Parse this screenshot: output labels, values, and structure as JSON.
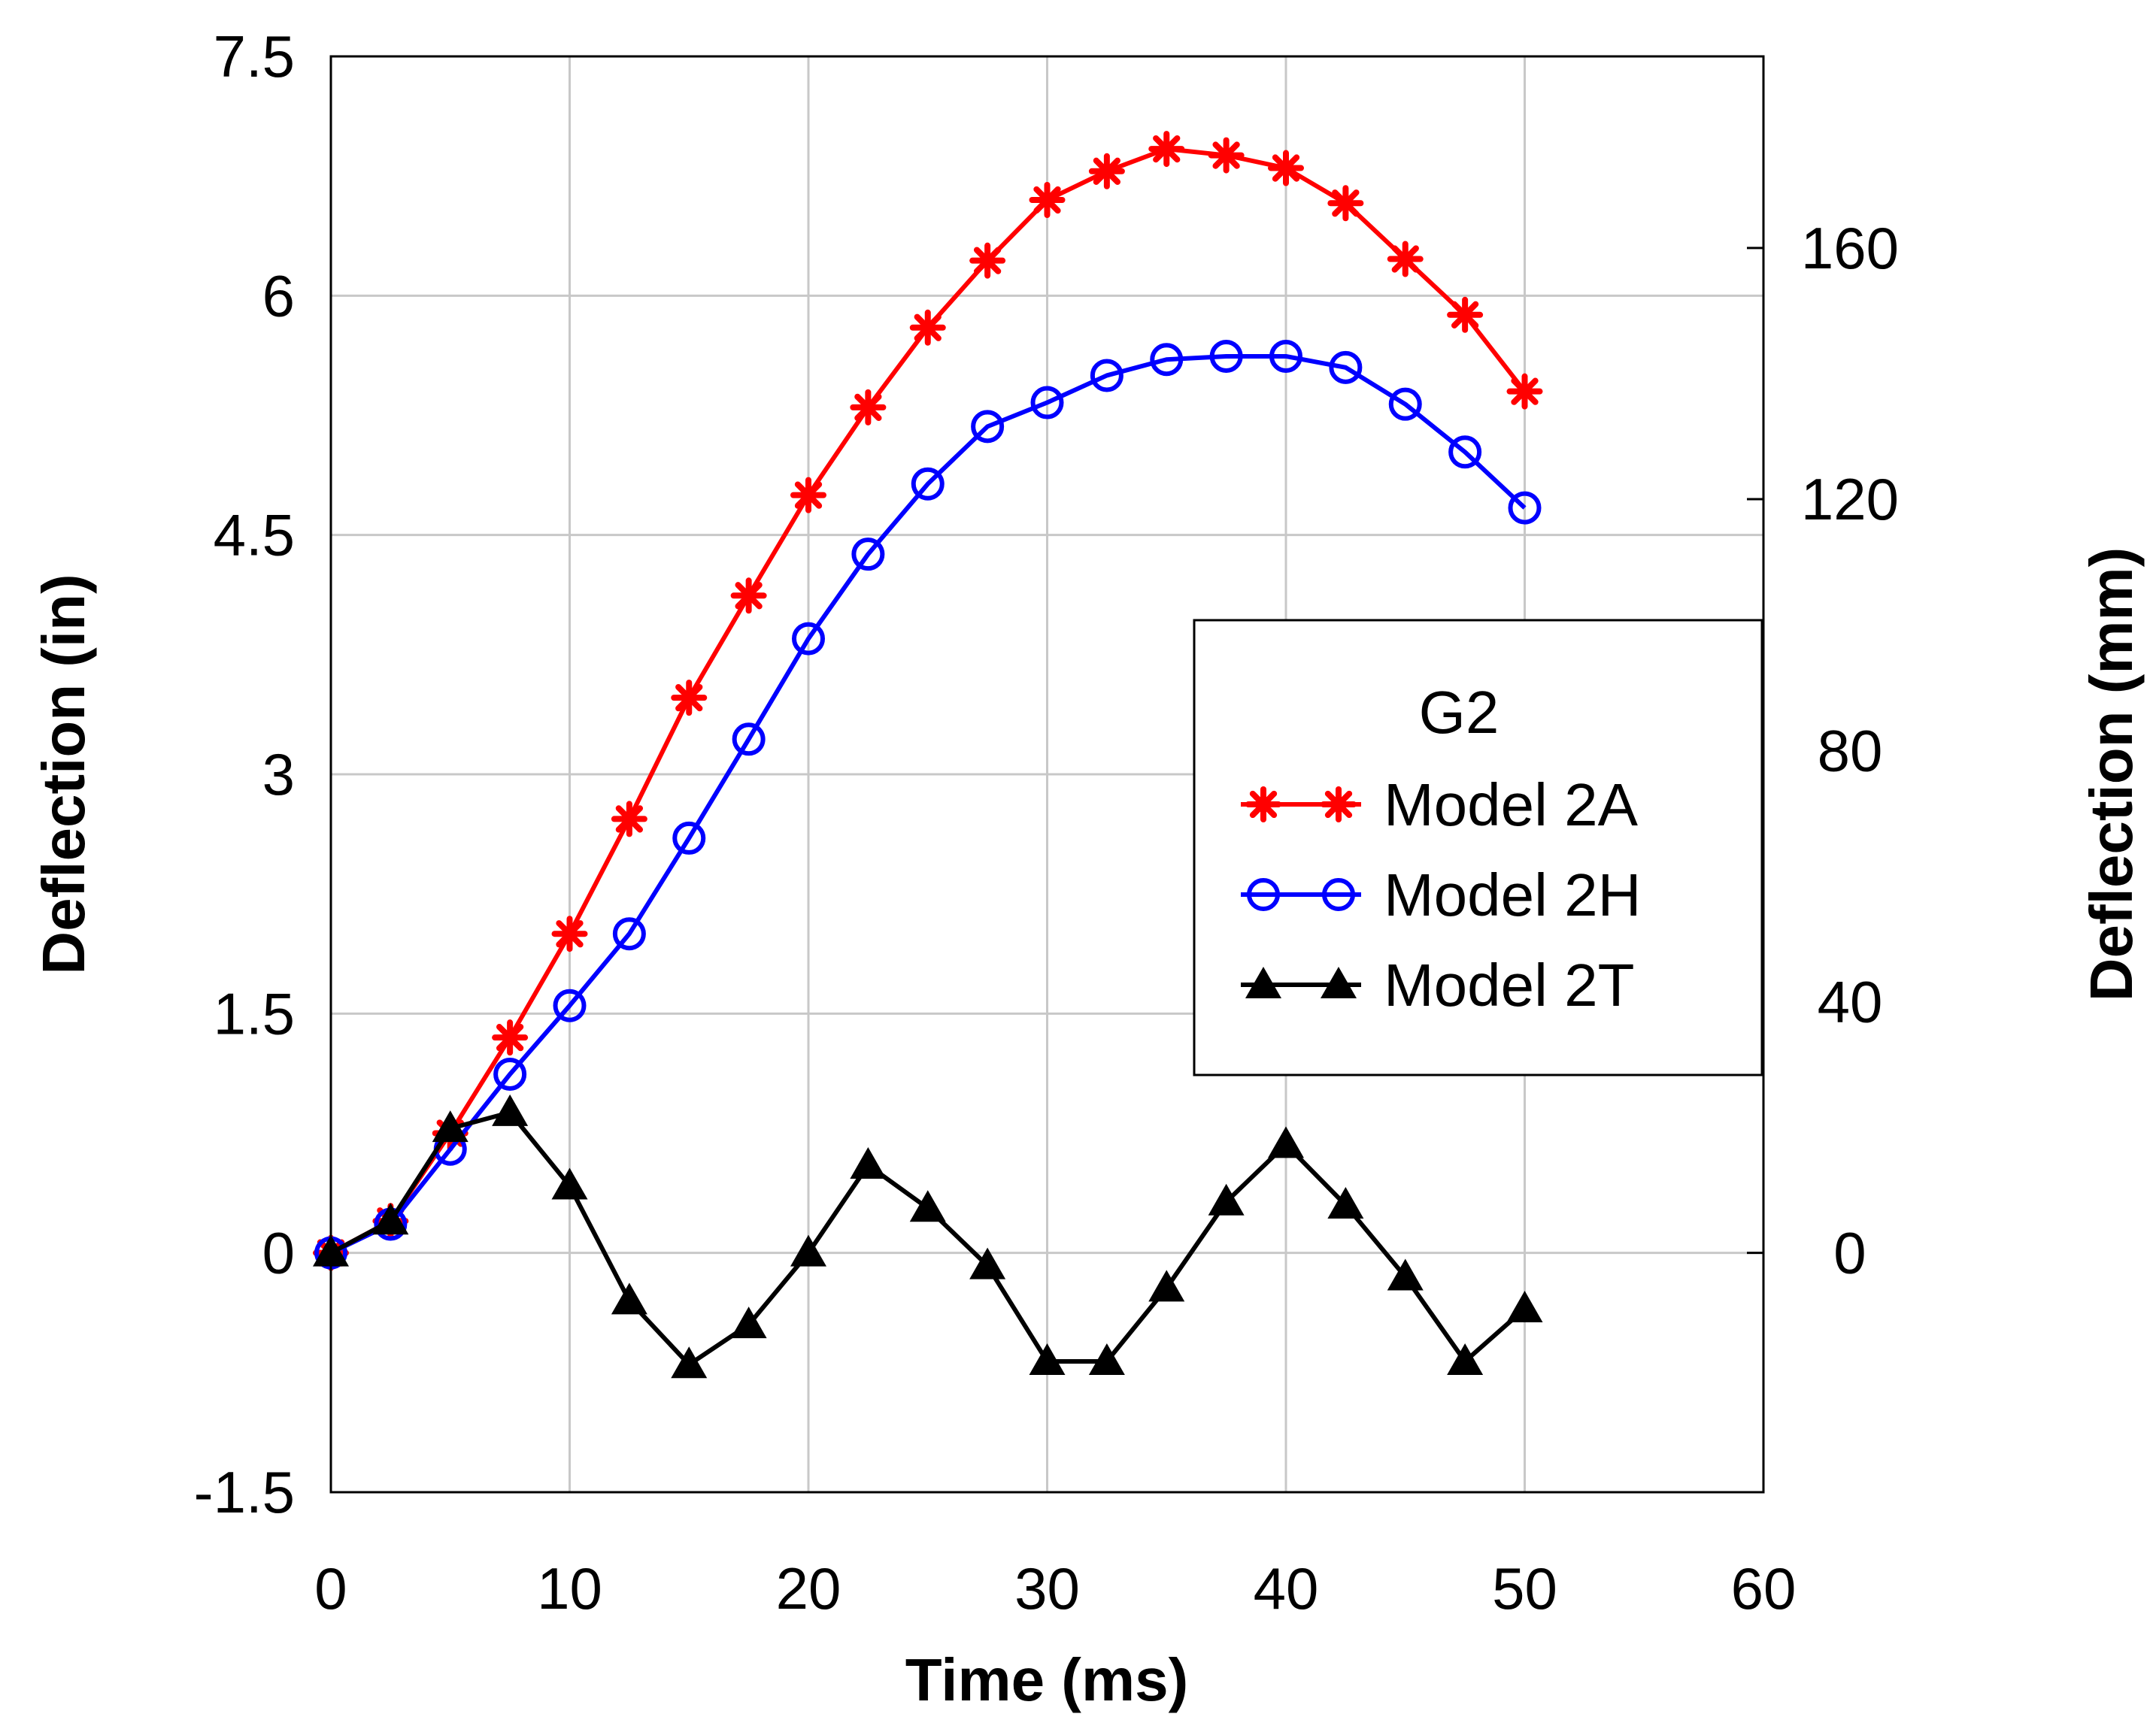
{
  "chart_data": {
    "type": "line",
    "title": "",
    "xlabel": "Time (ms)",
    "ylabel": "Deflection (in)",
    "y2label": "Deflection (mm)",
    "xlim": [
      0,
      60
    ],
    "ylim": [
      -1.5,
      7.5
    ],
    "y2lim": [
      -38.1,
      190.5
    ],
    "xticks": [
      "0",
      "10",
      "20",
      "30",
      "40",
      "50",
      "60"
    ],
    "xtick_values": [
      0,
      10,
      20,
      30,
      40,
      50,
      60
    ],
    "yticks": [
      "-1.5",
      "0",
      "1.5",
      "3",
      "4.5",
      "6",
      "7.5"
    ],
    "ytick_values": [
      -1.5,
      0,
      1.5,
      3,
      4.5,
      6,
      7.5
    ],
    "y2ticks": [
      "0",
      "40",
      "80",
      "120",
      "160"
    ],
    "y2tick_values": [
      0,
      40,
      80,
      120,
      160
    ],
    "grid": true,
    "legend": {
      "title": "G2",
      "position": "center-right"
    },
    "x": [
      0,
      2.5,
      5,
      7.5,
      10,
      12.5,
      15,
      17.5,
      20,
      22.5,
      25,
      27.5,
      30,
      32.5,
      35,
      37.5,
      40,
      42.5,
      45,
      47.5,
      50
    ],
    "series": [
      {
        "name": "Model 2A",
        "color": "#ff0000",
        "marker": "asterisk",
        "values": [
          0,
          0.2,
          0.75,
          1.35,
          2.0,
          2.72,
          3.48,
          4.12,
          4.75,
          5.3,
          5.8,
          6.22,
          6.6,
          6.78,
          6.92,
          6.88,
          6.8,
          6.58,
          6.23,
          5.88,
          5.4
        ]
      },
      {
        "name": "Model 2H",
        "color": "#0000ff",
        "marker": "circle",
        "values": [
          0,
          0.18,
          0.65,
          1.12,
          1.55,
          2.0,
          2.6,
          3.22,
          3.85,
          4.38,
          4.82,
          5.18,
          5.33,
          5.5,
          5.6,
          5.62,
          5.62,
          5.55,
          5.32,
          5.02,
          4.67
        ]
      },
      {
        "name": "Model 2T",
        "color": "#000000",
        "marker": "triangle",
        "values": [
          0,
          0.2,
          0.78,
          0.88,
          0.42,
          -0.3,
          -0.7,
          -0.45,
          0.0,
          0.55,
          0.28,
          -0.08,
          -0.68,
          -0.68,
          -0.22,
          0.32,
          0.68,
          0.3,
          -0.15,
          -0.68,
          -0.35
        ]
      }
    ]
  }
}
